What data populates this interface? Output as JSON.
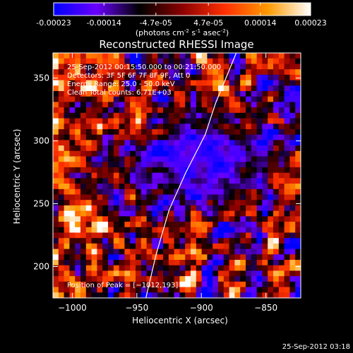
{
  "colorbar": {
    "tick_labels": [
      "-0.00023",
      "-0.00014",
      "-4.7e-05",
      "4.7e-05",
      "0.00014",
      "0.00023"
    ],
    "tick_values": [
      -0.00023,
      -0.00014,
      -4.7e-05,
      4.7e-05,
      0.00014,
      0.00023
    ],
    "range": [
      -0.00023,
      0.00023
    ],
    "units_parts": [
      "(photons cm",
      "-2",
      " s",
      "-1",
      " asec",
      "-2",
      ")"
    ],
    "gradient_colors": [
      "#0000ff",
      "#6a00ff",
      "#000000",
      "#8b0000",
      "#ff3000",
      "#ff9a00",
      "#ffffff"
    ]
  },
  "chart_data": {
    "type": "heatmap",
    "title": "Reconstructed RHESSI Image",
    "xlabel": "Heliocentric X (arcsec)",
    "ylabel": "Heliocentric Y (arcsec)",
    "xlim": [
      -1015,
      -823
    ],
    "ylim": [
      175,
      370
    ],
    "x_ticks": [
      -1000,
      -950,
      -900,
      -850
    ],
    "x_tick_labels": [
      "−1000",
      "−950",
      "−900",
      "−850"
    ],
    "y_ticks": [
      200,
      250,
      300,
      350
    ],
    "y_tick_labels": [
      "200",
      "250",
      "300",
      "350"
    ],
    "limb_curve": [
      [
        -943,
        175
      ],
      [
        -935,
        210
      ],
      [
        -925,
        245
      ],
      [
        -912,
        275
      ],
      [
        -897,
        305
      ],
      [
        -889,
        330
      ],
      [
        -881,
        350
      ],
      [
        -873,
        370
      ]
    ],
    "peak_marker": [
      -1012,
      193
    ],
    "annotations": [
      "25-Sep-2012 00:15:50.000 to 00:21:50.000",
      "Detectors: 3F 5F 6F 7F 8F 9F, Att 0",
      "Energy Range: 25.0 - 50.0 keV",
      "Clean    Total counts: 6.71E+03"
    ],
    "peak_label": "Position of Peak = [−1012,193]"
  },
  "footer": {
    "timestamp": "25-Sep-2012 03:18"
  }
}
